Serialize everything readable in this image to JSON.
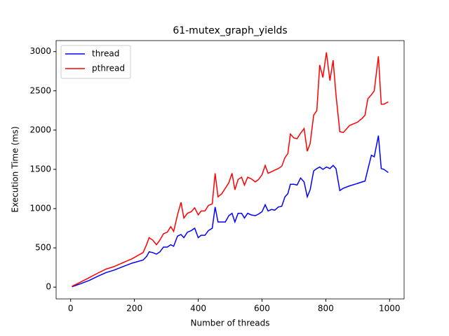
{
  "chart_data": {
    "type": "line",
    "title": "61-mutex_graph_yields",
    "x_label": "Number of threads",
    "y_label": "Execution Time (ms)",
    "x": [
      4,
      29,
      58,
      86,
      111,
      135,
      163,
      192,
      227,
      238,
      246,
      257,
      269,
      280,
      291,
      303,
      314,
      323,
      335,
      346,
      355,
      366,
      378,
      389,
      400,
      409,
      421,
      432,
      444,
      453,
      462,
      474,
      485,
      496,
      506,
      515,
      525,
      536,
      545,
      555,
      566,
      579,
      589,
      600,
      610,
      619,
      630,
      640,
      651,
      662,
      672,
      681,
      689,
      700,
      710,
      721,
      732,
      742,
      751,
      762,
      772,
      781,
      791,
      802,
      813,
      823,
      832,
      844,
      855,
      875,
      899,
      914,
      923,
      932,
      943,
      952,
      965,
      974,
      982,
      996
    ],
    "series": [
      {
        "name": "thread",
        "color": "#0000ff",
        "values": [
          5,
          40,
          85,
          140,
          185,
          215,
          260,
          305,
          345,
          390,
          450,
          440,
          420,
          450,
          510,
          510,
          540,
          520,
          650,
          670,
          630,
          700,
          720,
          750,
          630,
          660,
          660,
          720,
          750,
          1020,
          830,
          830,
          830,
          910,
          940,
          830,
          940,
          940,
          880,
          940,
          920,
          910,
          930,
          960,
          1050,
          970,
          990,
          980,
          1020,
          1030,
          1150,
          1190,
          1310,
          1310,
          1300,
          1390,
          1340,
          1150,
          1240,
          1480,
          1510,
          1530,
          1500,
          1530,
          1510,
          1550,
          1510,
          1230,
          1260,
          1290,
          1320,
          1340,
          1350,
          1500,
          1680,
          1660,
          1930,
          1510,
          1500,
          1460
        ]
      },
      {
        "name": "pthread",
        "color": "#ff0000",
        "values": [
          10,
          60,
          120,
          180,
          230,
          260,
          310,
          360,
          440,
          540,
          630,
          600,
          540,
          600,
          680,
          700,
          770,
          710,
          920,
          1080,
          880,
          940,
          960,
          1010,
          920,
          970,
          970,
          1040,
          1060,
          1450,
          1150,
          1190,
          1260,
          1330,
          1450,
          1240,
          1370,
          1400,
          1300,
          1400,
          1380,
          1340,
          1370,
          1430,
          1550,
          1450,
          1470,
          1490,
          1510,
          1540,
          1650,
          1700,
          1950,
          1900,
          1890,
          1960,
          2020,
          1730,
          1830,
          2190,
          2250,
          2830,
          2670,
          2990,
          2630,
          2890,
          2450,
          1980,
          1970,
          2060,
          2100,
          2150,
          2190,
          2400,
          2450,
          2500,
          2940,
          2330,
          2330,
          2360
        ]
      }
    ],
    "xlim": [
      -45.6,
      1045.6
    ],
    "ylim": [
      -150,
      3140
    ],
    "xticks": [
      0,
      200,
      400,
      600,
      800,
      1000
    ],
    "yticks": [
      0,
      500,
      1000,
      1500,
      2000,
      2500,
      3000
    ],
    "legend": "upper left"
  }
}
